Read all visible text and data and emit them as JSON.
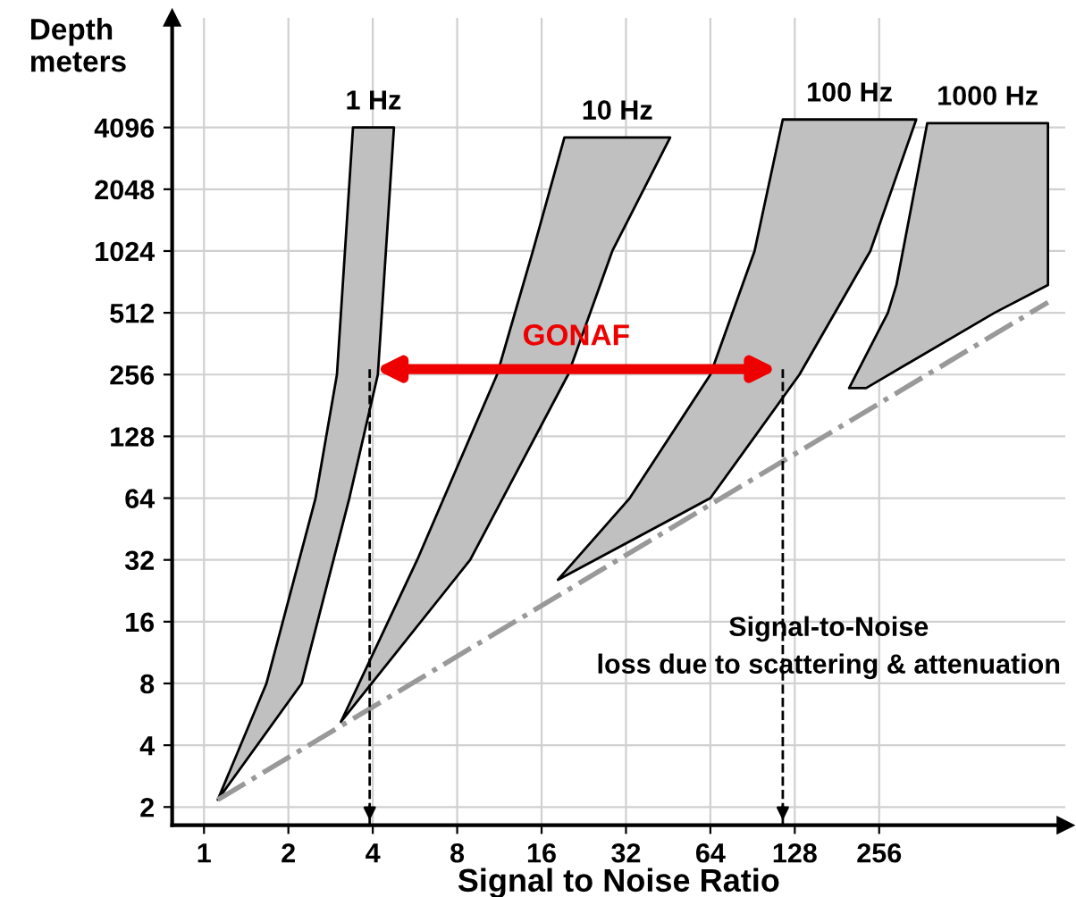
{
  "chart_data": {
    "type": "area",
    "xlabel": "Signal to Noise Ratio",
    "ylabel": "Depth\nmeters",
    "log": "xy",
    "xlim": [
      0.77,
      1180
    ],
    "xticks": [
      1,
      2,
      4,
      8,
      16,
      32,
      64,
      128,
      256
    ],
    "ylim": [
      1.63,
      14000
    ],
    "yticks": [
      2,
      4,
      8,
      16,
      32,
      64,
      128,
      256,
      512,
      1024,
      2048,
      4096
    ],
    "grid": true,
    "legend": false,
    "series": [
      {
        "name": "1 Hz",
        "color": "#c0c0c0",
        "x": [
          1.12,
          1.67,
          2.5,
          2.98,
          3.4,
          4.76,
          4.17,
          3.3,
          2.23,
          1.12
        ],
        "values": [
          2.17,
          8,
          64,
          256,
          4096,
          4096,
          256,
          64,
          8,
          2.17
        ]
      },
      {
        "name": "10 Hz",
        "color": "#c0c0c0",
        "x": [
          3.08,
          5.76,
          11.1,
          14.9,
          19.3,
          46,
          28.6,
          19.9,
          8.9,
          3.08
        ],
        "values": [
          5.2,
          32,
          256,
          1024,
          3660,
          3660,
          1024,
          256,
          32,
          5.2
        ]
      },
      {
        "name": "100 Hz",
        "color": "#c0c0c0",
        "x": [
          18.3,
          33,
          64,
          92,
          116,
          347,
          238,
          133,
          64,
          18.3
        ],
        "values": [
          25.6,
          64,
          256,
          1024,
          4480,
          4480,
          1024,
          256,
          64,
          25.6
        ]
      },
      {
        "name": "1000 Hz",
        "color": "#c0c0c0",
        "x": [
          200,
          275,
          295,
          380,
          1024,
          1024,
          660,
          230,
          200
        ],
        "values": [
          220,
          512,
          700,
          4300,
          4300,
          700,
          512,
          220,
          220
        ]
      },
      {
        "type": "line",
        "color": "#999999",
        "line_style": "dashed",
        "x": [
          1.12,
          1024
        ],
        "values": [
          2.17,
          576
        ]
      }
    ],
    "ref_lines": [
      {
        "axis": "x",
        "value": 3.9,
        "color": "#000000",
        "line_style": "dashed"
      },
      {
        "axis": "x",
        "value": 116,
        "color": "#000000",
        "line_style": "dashed"
      }
    ],
    "annotations": [
      "GONAF",
      "Signal-to-Noise\nloss due to scattering & attenuation"
    ]
  }
}
